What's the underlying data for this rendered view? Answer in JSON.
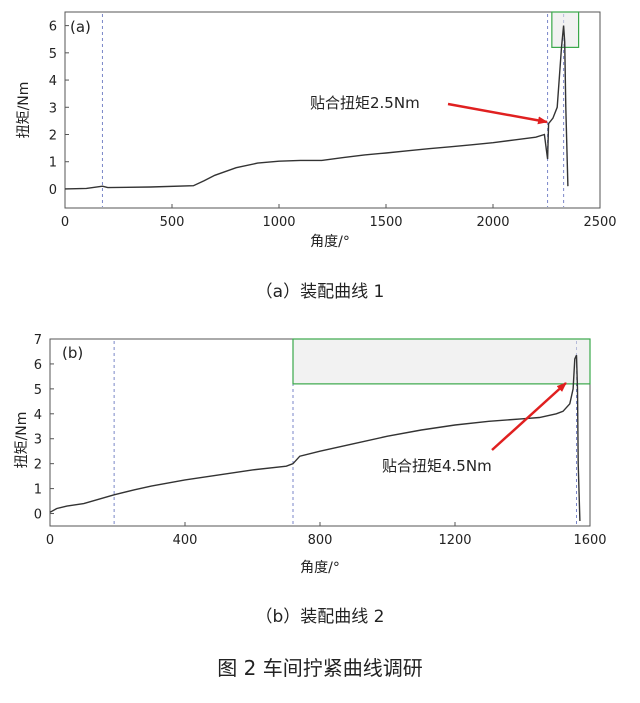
{
  "figure_caption": "图 2 车间拧紧曲线调研",
  "chart_data": [
    {
      "type": "line",
      "panel_label": "(a)",
      "caption": "（a）装配曲线 1",
      "xlabel": "角度/°",
      "ylabel": "扭矩/Nm",
      "xlim": [
        0,
        2500
      ],
      "ylim": [
        -0.7,
        6.5
      ],
      "x_ticks": [
        "0",
        "500",
        "1000",
        "1500",
        "2000",
        "2500"
      ],
      "y_ticks": [
        "0",
        "1",
        "2",
        "3",
        "4",
        "5",
        "6"
      ],
      "grid": false,
      "annotation": {
        "text": "贴合扭矩2.5Nm",
        "x": 2270,
        "y": 2.5
      },
      "markers_x": [
        175,
        2255
      ],
      "marker_after_peak_x": 2330,
      "window": {
        "x": [
          2275,
          2400
        ],
        "y": [
          5.2,
          6.5
        ]
      },
      "series": [
        {
          "x": [
            0,
            100,
            175,
            200,
            400,
            600,
            650,
            700,
            800,
            900,
            1000,
            1100,
            1200,
            1300,
            1400,
            1500,
            1600,
            1700,
            1800,
            1900,
            2000,
            2100,
            2200,
            2240,
            2250,
            2255,
            2260,
            2280,
            2300,
            2320,
            2330,
            2335,
            2340,
            2350
          ],
          "y": [
            0.0,
            0.02,
            0.1,
            0.05,
            0.07,
            0.12,
            0.3,
            0.5,
            0.78,
            0.95,
            1.02,
            1.05,
            1.05,
            1.15,
            1.25,
            1.32,
            1.4,
            1.48,
            1.55,
            1.62,
            1.7,
            1.8,
            1.9,
            2.0,
            1.4,
            1.1,
            2.4,
            2.6,
            3.0,
            5.2,
            6.0,
            5.4,
            3.0,
            0.1
          ]
        }
      ]
    },
    {
      "type": "line",
      "panel_label": "(b)",
      "caption": "（b）装配曲线 2",
      "xlabel": "角度/°",
      "ylabel": "扭矩/Nm",
      "xlim": [
        0,
        1600
      ],
      "ylim": [
        -0.5,
        7.0
      ],
      "x_ticks": [
        "0",
        "400",
        "800",
        "1200",
        "1600"
      ],
      "y_ticks": [
        "0",
        "1",
        "2",
        "3",
        "4",
        "5",
        "6",
        "7"
      ],
      "grid": false,
      "annotation": {
        "text": "贴合扭矩4.5Nm",
        "x": 1540,
        "y": 4.5
      },
      "markers_x": [
        190,
        720
      ],
      "marker_after_peak_x": 1560,
      "window": {
        "x": [
          720,
          1600
        ],
        "y": [
          5.2,
          7.0
        ]
      },
      "series": [
        {
          "x": [
            0,
            20,
            50,
            100,
            190,
            250,
            300,
            400,
            500,
            600,
            700,
            720,
            740,
            800,
            900,
            1000,
            1100,
            1200,
            1300,
            1400,
            1450,
            1500,
            1520,
            1540,
            1550,
            1555,
            1560,
            1563,
            1565,
            1570
          ],
          "y": [
            0.05,
            0.2,
            0.3,
            0.4,
            0.75,
            0.95,
            1.1,
            1.35,
            1.55,
            1.75,
            1.9,
            2.0,
            2.3,
            2.5,
            2.8,
            3.1,
            3.35,
            3.55,
            3.7,
            3.8,
            3.85,
            4.0,
            4.1,
            4.4,
            5.0,
            6.2,
            6.35,
            5.0,
            2.0,
            -0.3
          ]
        }
      ]
    }
  ]
}
